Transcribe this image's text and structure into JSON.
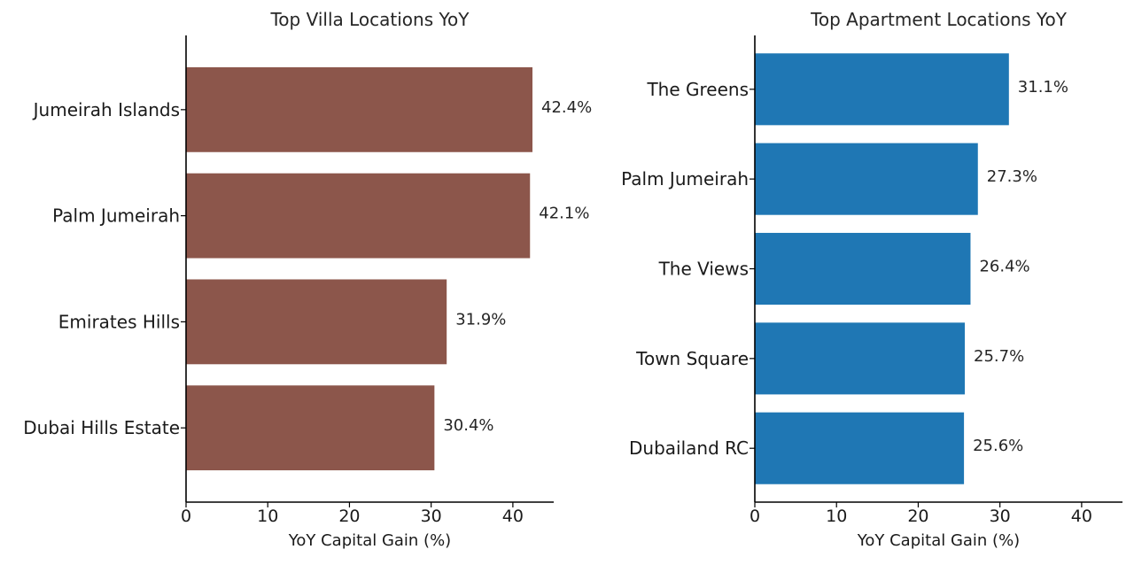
{
  "chart_data": [
    {
      "type": "bar",
      "orientation": "horizontal",
      "title": "Top Villa Locations YoY",
      "xlabel": "YoY Capital Gain (%)",
      "ylabel": "",
      "categories": [
        "Jumeirah Islands",
        "Palm Jumeirah",
        "Emirates Hills",
        "Dubai Hills Estate"
      ],
      "values": [
        42.4,
        42.1,
        31.9,
        30.4
      ],
      "data_labels": [
        "42.4%",
        "42.1%",
        "31.9%",
        "30.4%"
      ],
      "xlim": [
        0,
        45
      ],
      "xticks": [
        0,
        10,
        20,
        30,
        40
      ],
      "xtick_labels": [
        "0",
        "10",
        "20",
        "30",
        "40"
      ],
      "color": "#8c564b",
      "grid": false,
      "legend": "none"
    },
    {
      "type": "bar",
      "orientation": "horizontal",
      "title": "Top Apartment Locations YoY",
      "xlabel": "YoY Capital Gain (%)",
      "ylabel": "",
      "categories": [
        "The Greens",
        "Palm Jumeirah",
        "The Views",
        "Town Square",
        "Dubailand RC"
      ],
      "values": [
        31.1,
        27.3,
        26.4,
        25.7,
        25.6
      ],
      "data_labels": [
        "31.1%",
        "27.3%",
        "26.4%",
        "25.7%",
        "25.6%"
      ],
      "xlim": [
        0,
        45
      ],
      "xticks": [
        0,
        10,
        20,
        30,
        40
      ],
      "xtick_labels": [
        "0",
        "10",
        "20",
        "30",
        "40"
      ],
      "color": "#1f77b4",
      "grid": false,
      "legend": "none"
    }
  ]
}
